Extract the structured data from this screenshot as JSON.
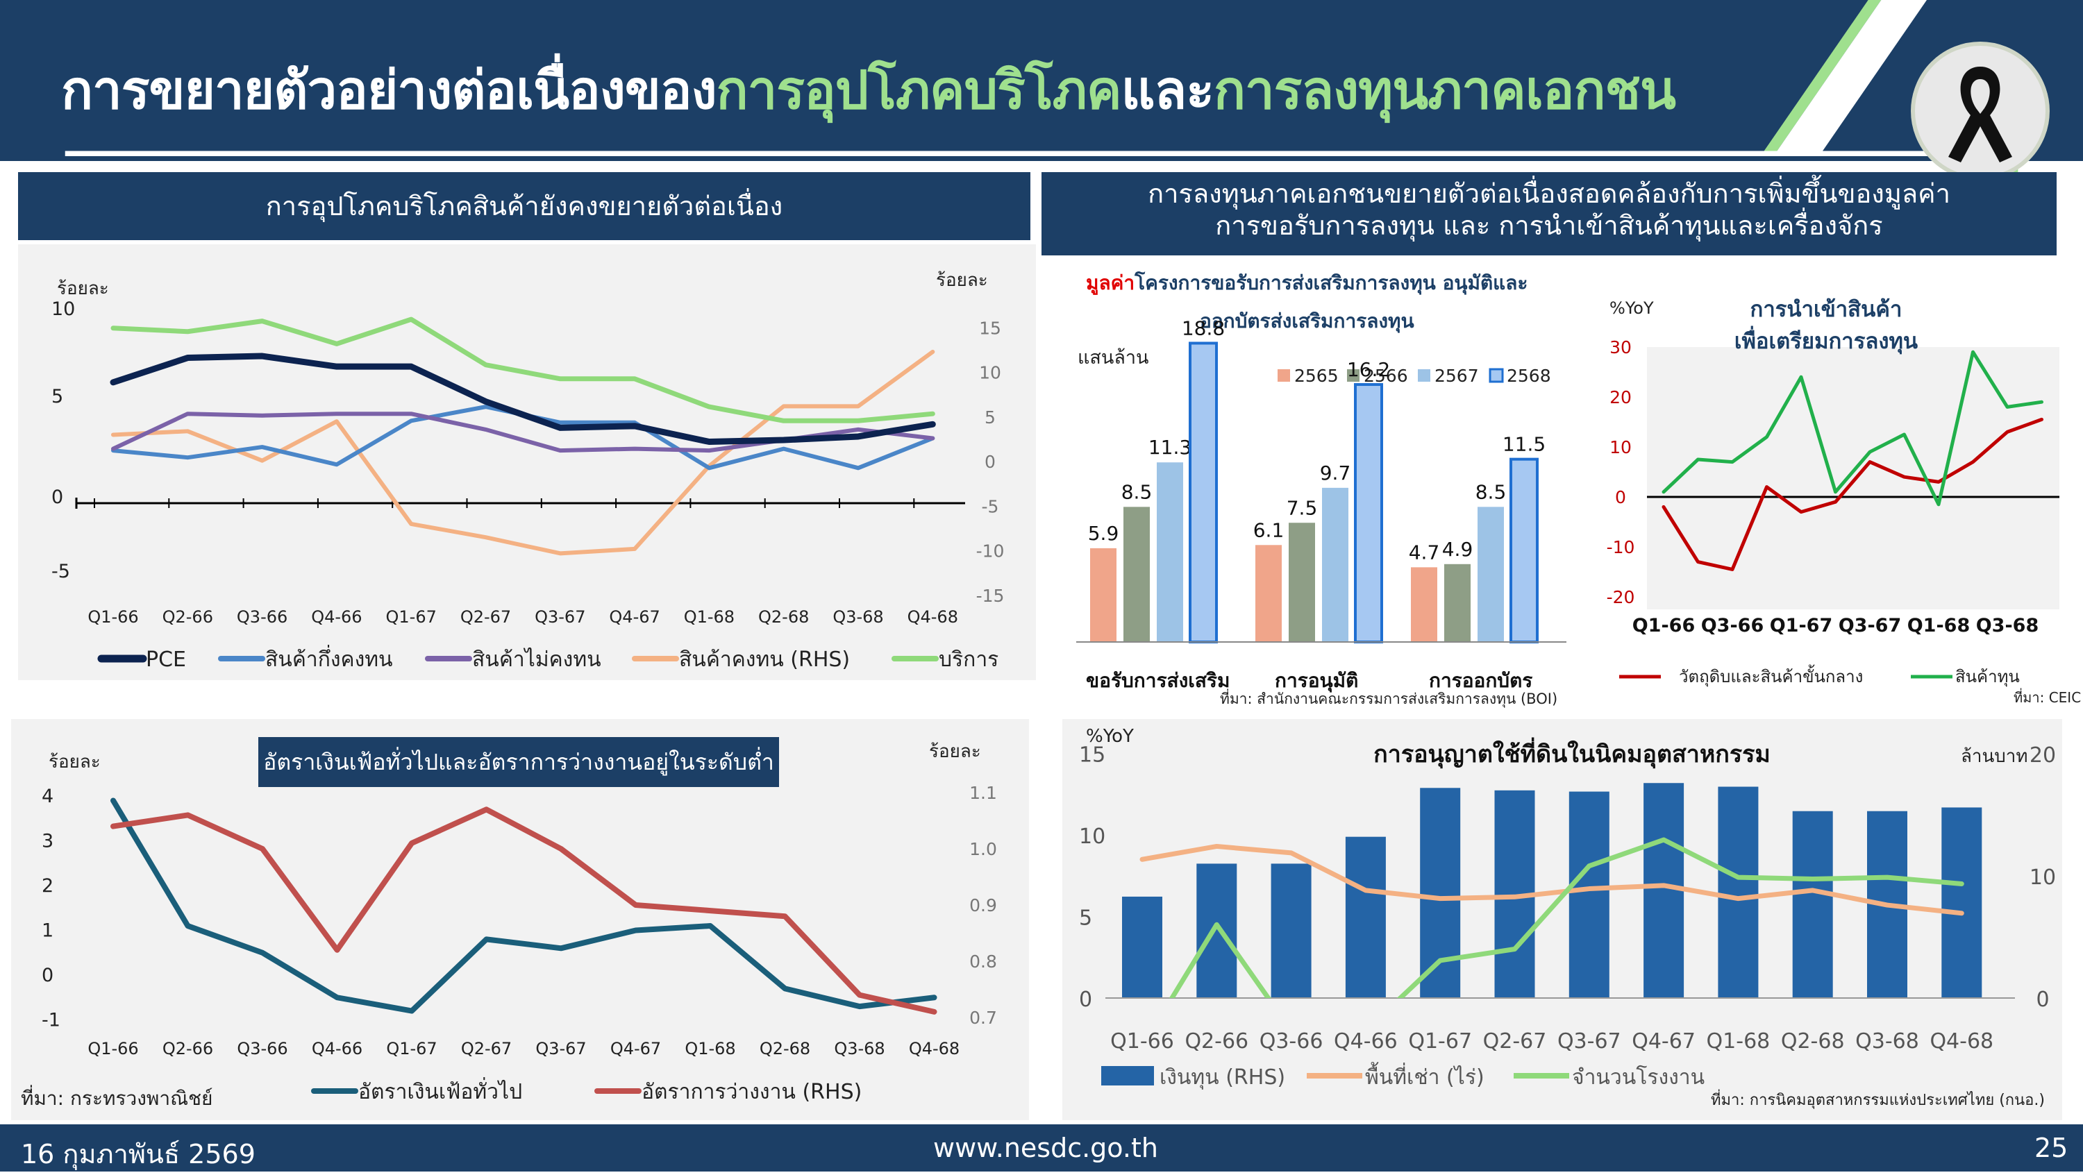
{
  "header": {
    "title_part1": "การขยายตัวอย่างต่อเนื่องของ",
    "title_part2": "การอุปโภคบริโภค",
    "title_part3": "และ",
    "title_part4": "การลงทุนภาคเอกชน"
  },
  "colors": {
    "navy": "#1c3f66",
    "pce": "#0c2350",
    "semi": "#4a86c8",
    "nondur": "#7b62a8",
    "durable": "#f4b183",
    "service": "#8fd97a",
    "inflation": "#1a5e7a",
    "unemp": "#c0504d",
    "y2565": "#f0a58a",
    "y2566": "#8e9e86",
    "y2567": "#9dc3e6",
    "y2568": "#a6c8f2",
    "raw": "#c00000",
    "capital": "#21b04b",
    "invest": "#2464a6",
    "rent": "#f4b183",
    "factory": "#8fd97a"
  },
  "panel1": {
    "heading": "การอุปโภคบริโภคสินค้ายังคงขยายตัวต่อเนื่อง",
    "left_unit": "ร้อยละ",
    "right_unit": "ร้อยละ",
    "source": ""
  },
  "panel2": {
    "heading": "อัตราเงินเฟ้อทั่วไปและอัตราการว่างงานอยู่ในระดับต่ำ",
    "left_unit": "ร้อยละ",
    "right_unit": "ร้อยละ",
    "source": "ที่มา: กระทรวงพาณิชย์"
  },
  "panel3": {
    "heading_line1": "การลงทุนภาคเอกชนขยายตัวต่อเนื่องสอดคล้องกับการเพิ่มขึ้นของมูลค่า",
    "heading_line2": "การขอรับการลงทุน และ การนำเข้าสินค้าทุนและเครื่องจักร",
    "boi_title_red": "มูลค่า",
    "boi_title_rest": "โครงการขอรับการส่งเสริมการลงทุน อนุมัติและ",
    "boi_title_line2": "ออกบัตรส่งเสริมการลงทุน",
    "boi_unit": "แสนล้าน",
    "boi_source": "ที่มา: สำนักงานคณะกรรมการส่งเสริมการลงทุน (BOI)",
    "import_title_line1": "การนำเข้าสินค้า",
    "import_title_line2": "เพื่อเตรียมการลงทุน",
    "import_unit": "%YoY",
    "import_source": "ที่มา: CEIC",
    "land_title": "การอนุญาตใช้ที่ดินในนิคมอุตสาหกรรม",
    "land_left_unit": "%YoY",
    "land_right_unit": "ล้านบาท",
    "land_source": "ที่มา: การนิคมอุตสาหกรรมแห่งประเทศไทย (กนอ.)"
  },
  "footer": {
    "date": "16 กุมภาพันธ์ 2569",
    "url": "www.nesdc.go.th",
    "page": "25"
  },
  "chart_data": [
    {
      "type": "line",
      "x": [
        "Q1-66",
        "Q2-66",
        "Q3-66",
        "Q4-66",
        "Q1-67",
        "Q2-67",
        "Q3-67",
        "Q4-67",
        "Q1-68",
        "Q2-68",
        "Q3-68",
        "Q4-68"
      ],
      "ylim": [
        -5,
        10
      ],
      "y2lim": [
        -15,
        15
      ],
      "yticks": [
        "10",
        "5",
        "0",
        "-5"
      ],
      "y2ticks": [
        "15",
        "10",
        "5",
        "0",
        "-5",
        "-10",
        "-15"
      ],
      "series": [
        {
          "name": "PCE",
          "values": [
            5.8,
            7.2,
            7.3,
            6.7,
            6.7,
            4.7,
            3.2,
            3.3,
            2.4,
            2.5,
            2.7,
            3.4
          ]
        },
        {
          "name": "สินค้ากึ่งคงทน",
          "values": [
            1.9,
            1.5,
            2.1,
            1.1,
            3.6,
            4.4,
            3.5,
            3.5,
            0.9,
            2.0,
            0.9,
            2.6
          ]
        },
        {
          "name": "สินค้าไม่คงทน",
          "values": [
            2.0,
            4.0,
            3.9,
            4.0,
            4.0,
            3.1,
            1.9,
            2.0,
            1.9,
            2.5,
            3.1,
            2.6
          ]
        },
        {
          "name": "สินค้าคงทน (RHS)",
          "axis": "right",
          "values": [
            3.0,
            3.4,
            0.1,
            4.5,
            -7.0,
            -8.5,
            -10.3,
            -9.8,
            -0.5,
            6.2,
            6.2,
            12.3
          ]
        },
        {
          "name": "บริการ",
          "values": [
            8.9,
            8.7,
            9.3,
            8.0,
            9.4,
            6.8,
            6.0,
            6.0,
            4.4,
            3.6,
            3.6,
            4.0
          ]
        }
      ]
    },
    {
      "type": "line",
      "x": [
        "Q1-66",
        "Q2-66",
        "Q3-66",
        "Q4-66",
        "Q1-67",
        "Q2-67",
        "Q3-67",
        "Q4-67",
        "Q1-68",
        "Q2-68",
        "Q3-68",
        "Q4-68"
      ],
      "ylim": [
        -1,
        4
      ],
      "y2lim": [
        0.7,
        1.1
      ],
      "yticks": [
        "4",
        "3",
        "2",
        "1",
        "0",
        "-1"
      ],
      "y2ticks": [
        "1.1",
        "1.0",
        "0.9",
        "0.8",
        "0.7"
      ],
      "series": [
        {
          "name": "อัตราเงินเฟ้อทั่วไป",
          "values": [
            3.9,
            1.1,
            0.5,
            -0.5,
            -0.8,
            0.8,
            0.6,
            1.0,
            1.1,
            -0.3,
            -0.7,
            -0.5
          ]
        },
        {
          "name": "อัตราการว่างงาน (RHS)",
          "axis": "right",
          "values": [
            1.04,
            1.06,
            1.0,
            0.82,
            1.01,
            1.07,
            1.0,
            0.9,
            0.89,
            0.88,
            0.74,
            0.71
          ]
        }
      ]
    },
    {
      "type": "bar",
      "categories": [
        "ขอรับการส่งเสริม",
        "การอนุมัติ",
        "การออกบัตร"
      ],
      "series": [
        {
          "name": "2565",
          "values": [
            5.9,
            6.1,
            4.7
          ]
        },
        {
          "name": "2566",
          "values": [
            8.5,
            7.5,
            4.9
          ]
        },
        {
          "name": "2567",
          "values": [
            11.3,
            9.7,
            8.5
          ]
        },
        {
          "name": "2568",
          "values": [
            18.8,
            16.2,
            11.5
          ]
        }
      ]
    },
    {
      "type": "line",
      "x": [
        "Q1-66",
        "Q2-66",
        "Q3-66",
        "Q4-66",
        "Q1-67",
        "Q2-67",
        "Q3-67",
        "Q4-67",
        "Q1-68",
        "Q2-68",
        "Q3-68",
        "Q4-68"
      ],
      "xticks": [
        "Q1-66",
        "Q3-66",
        "Q1-67",
        "Q3-67",
        "Q1-68",
        "Q3-68"
      ],
      "ylim": [
        -20,
        30
      ],
      "yticks": [
        "30",
        "20",
        "10",
        "0",
        "-10",
        "-20"
      ],
      "series": [
        {
          "name": "วัตถุดิบและสินค้าขั้นกลาง",
          "values": [
            -2,
            -13,
            -14.5,
            2,
            -3,
            -1,
            7,
            4,
            3,
            7,
            13,
            15.5
          ]
        },
        {
          "name": "สินค้าทุน",
          "values": [
            1,
            7.5,
            7,
            12,
            24,
            1,
            9,
            12.5,
            -1.5,
            29,
            18,
            19
          ]
        }
      ]
    },
    {
      "type": "bar+line",
      "categories": [
        "Q1-66",
        "Q2-66",
        "Q3-66",
        "Q4-66",
        "Q1-67",
        "Q2-67",
        "Q3-67",
        "Q4-67",
        "Q1-68",
        "Q2-68",
        "Q3-68",
        "Q4-68"
      ],
      "ylim": [
        0,
        15
      ],
      "y2lim": [
        0,
        20
      ],
      "yticks": [
        "15",
        "10",
        "5",
        "0"
      ],
      "y2ticks": [
        "20",
        "10",
        "0"
      ],
      "series": [
        {
          "name": "เงินทุน (RHS)",
          "type": "bar",
          "axis": "right",
          "values": [
            8.3,
            11.0,
            11.0,
            13.2,
            17.2,
            17.0,
            16.9,
            17.6,
            17.3,
            15.3,
            15.3,
            15.6
          ]
        },
        {
          "name": "พื้นที่เช่า (ไร่)",
          "type": "line",
          "values": [
            8.5,
            9.3,
            8.9,
            6.6,
            6.1,
            6.2,
            6.7,
            6.9,
            6.1,
            6.6,
            5.7,
            5.2
          ]
        },
        {
          "name": "จำนวนโรงงาน",
          "type": "line",
          "values": [
            -3,
            4.5,
            -2,
            -2,
            2.3,
            3.0,
            8.1,
            9.7,
            7.4,
            7.3,
            7.4,
            7.0
          ]
        }
      ]
    }
  ]
}
